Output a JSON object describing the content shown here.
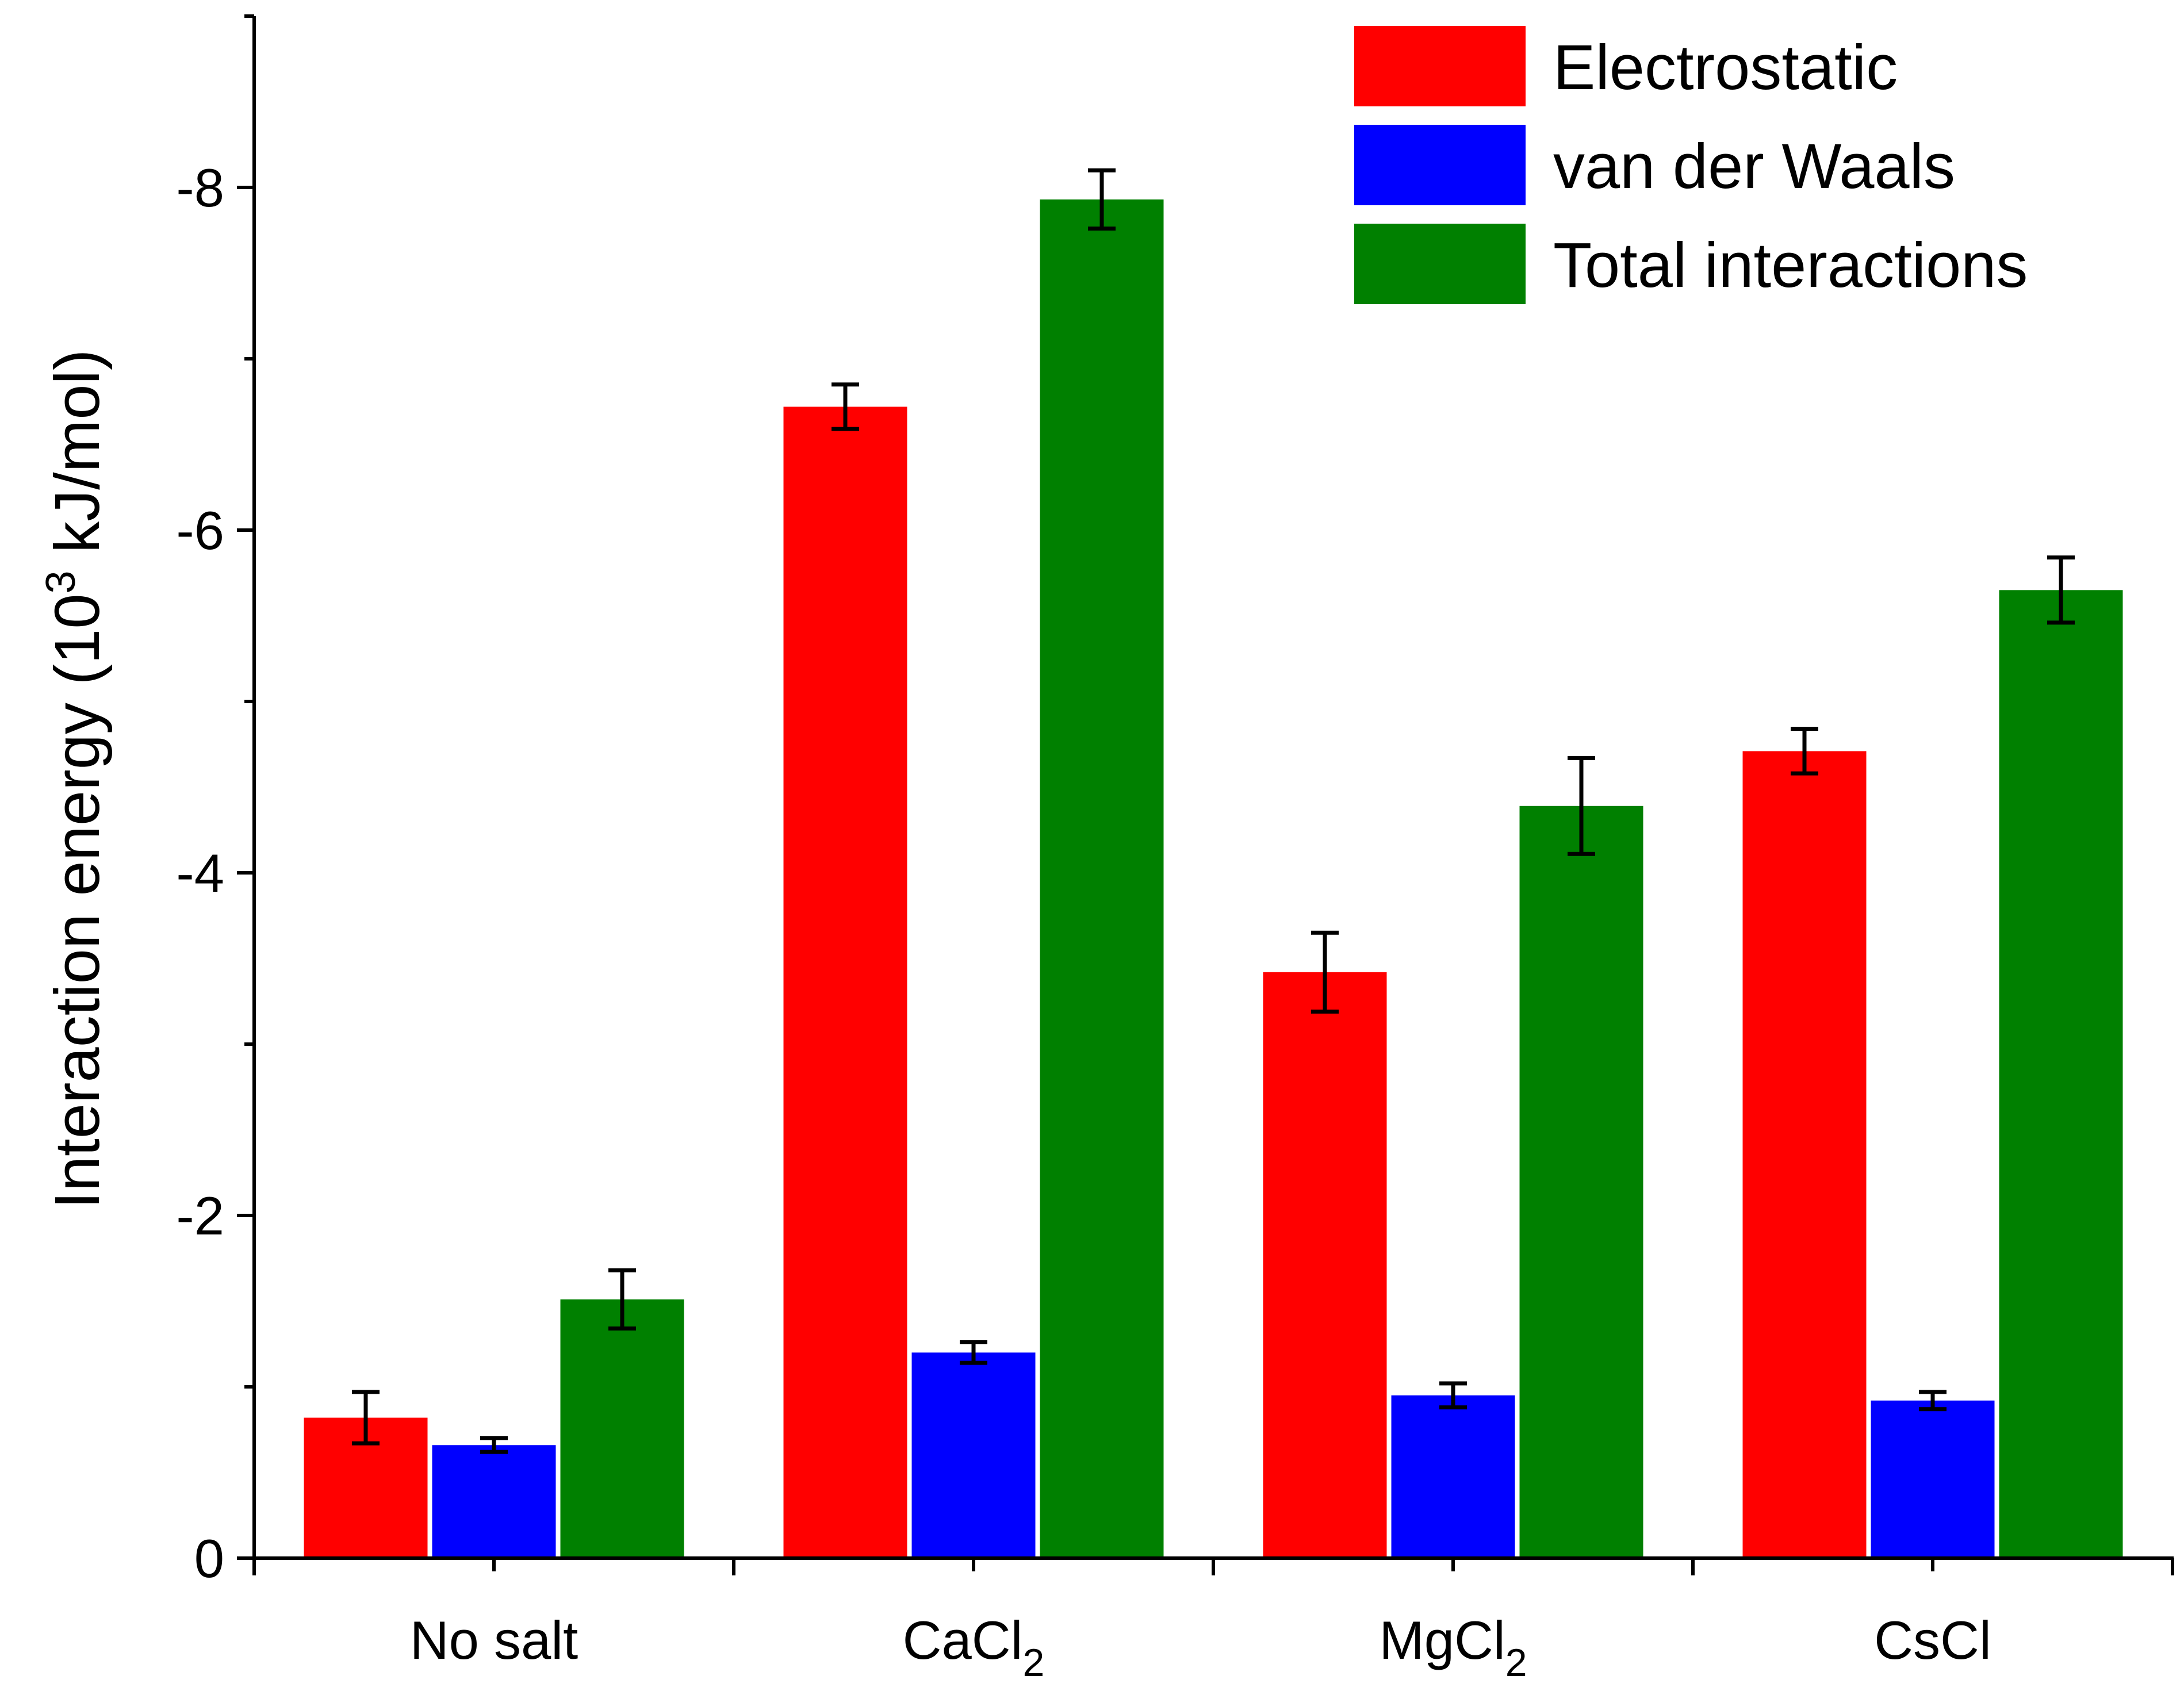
{
  "chart_data": {
    "type": "bar",
    "categories": [
      "No salt",
      "CaCl",
      "MgCl",
      "CsCl"
    ],
    "category_subscripts": [
      "",
      "2",
      "2",
      ""
    ],
    "ylabel": "Interaction energy (10",
    "ylabel_superscript": "3",
    "ylabel_suffix": " kJ/mol)",
    "xlabel": "",
    "ylim": [
      0,
      -9
    ],
    "y_reversed": true,
    "y_ticks": [
      0,
      -2,
      -4,
      -6,
      -8
    ],
    "y_tick_labels": [
      "0",
      "-2",
      "-4",
      "-6",
      "-8"
    ],
    "legend_position": "top-right",
    "grid": false,
    "series": [
      {
        "name": "Electrostatic",
        "color": "#ff0000",
        "values": [
          -0.82,
          -6.72,
          -3.42,
          -4.71
        ],
        "errors": [
          0.15,
          0.13,
          0.23,
          0.13
        ]
      },
      {
        "name": "van der Waals",
        "color": "#0000ff",
        "values": [
          -0.66,
          -1.2,
          -0.95,
          -0.92
        ],
        "errors": [
          0.04,
          0.06,
          0.07,
          0.05
        ]
      },
      {
        "name": "Total interactions",
        "color": "#008000",
        "values": [
          -1.51,
          -7.93,
          -4.39,
          -5.65
        ],
        "errors": [
          0.17,
          0.17,
          0.28,
          0.19
        ]
      }
    ]
  }
}
